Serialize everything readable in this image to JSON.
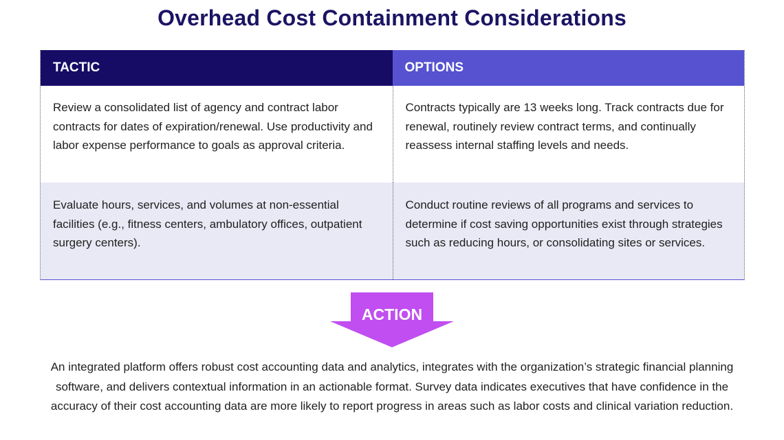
{
  "title": "Overhead Cost Containment Considerations",
  "table": {
    "headers": [
      "TACTIC",
      "OPTIONS"
    ],
    "rows": [
      {
        "tactic": "Review a consolidated list of agency and contract labor contracts for dates of expiration/renewal. Use productivity and labor expense performance to goals as approval criteria.",
        "options": "Contracts typically are 13 weeks long. Track contracts due for renewal, routinely review contract terms, and continually reassess internal staffing levels and needs."
      },
      {
        "tactic": "Evaluate hours, services, and volumes at non-essential facilities (e.g., fitness centers, ambulatory offices, outpatient surgery centers).",
        "options": "Conduct routine reviews of all programs and services to determine if cost saving opportunities exist through strategies such as reducing hours, or consolidating sites or services."
      }
    ]
  },
  "action": {
    "label": "ACTION",
    "color": "#c04ef0"
  },
  "summary": "An integrated platform offers robust cost accounting data and analytics, integrates with the organization’s strategic financial planning software, and delivers contextual information in an actionable format. Survey data indicates executives that have confidence in the accuracy of their cost accounting data are more likely to report progress in areas such as labor costs and clinical variation reduction."
}
